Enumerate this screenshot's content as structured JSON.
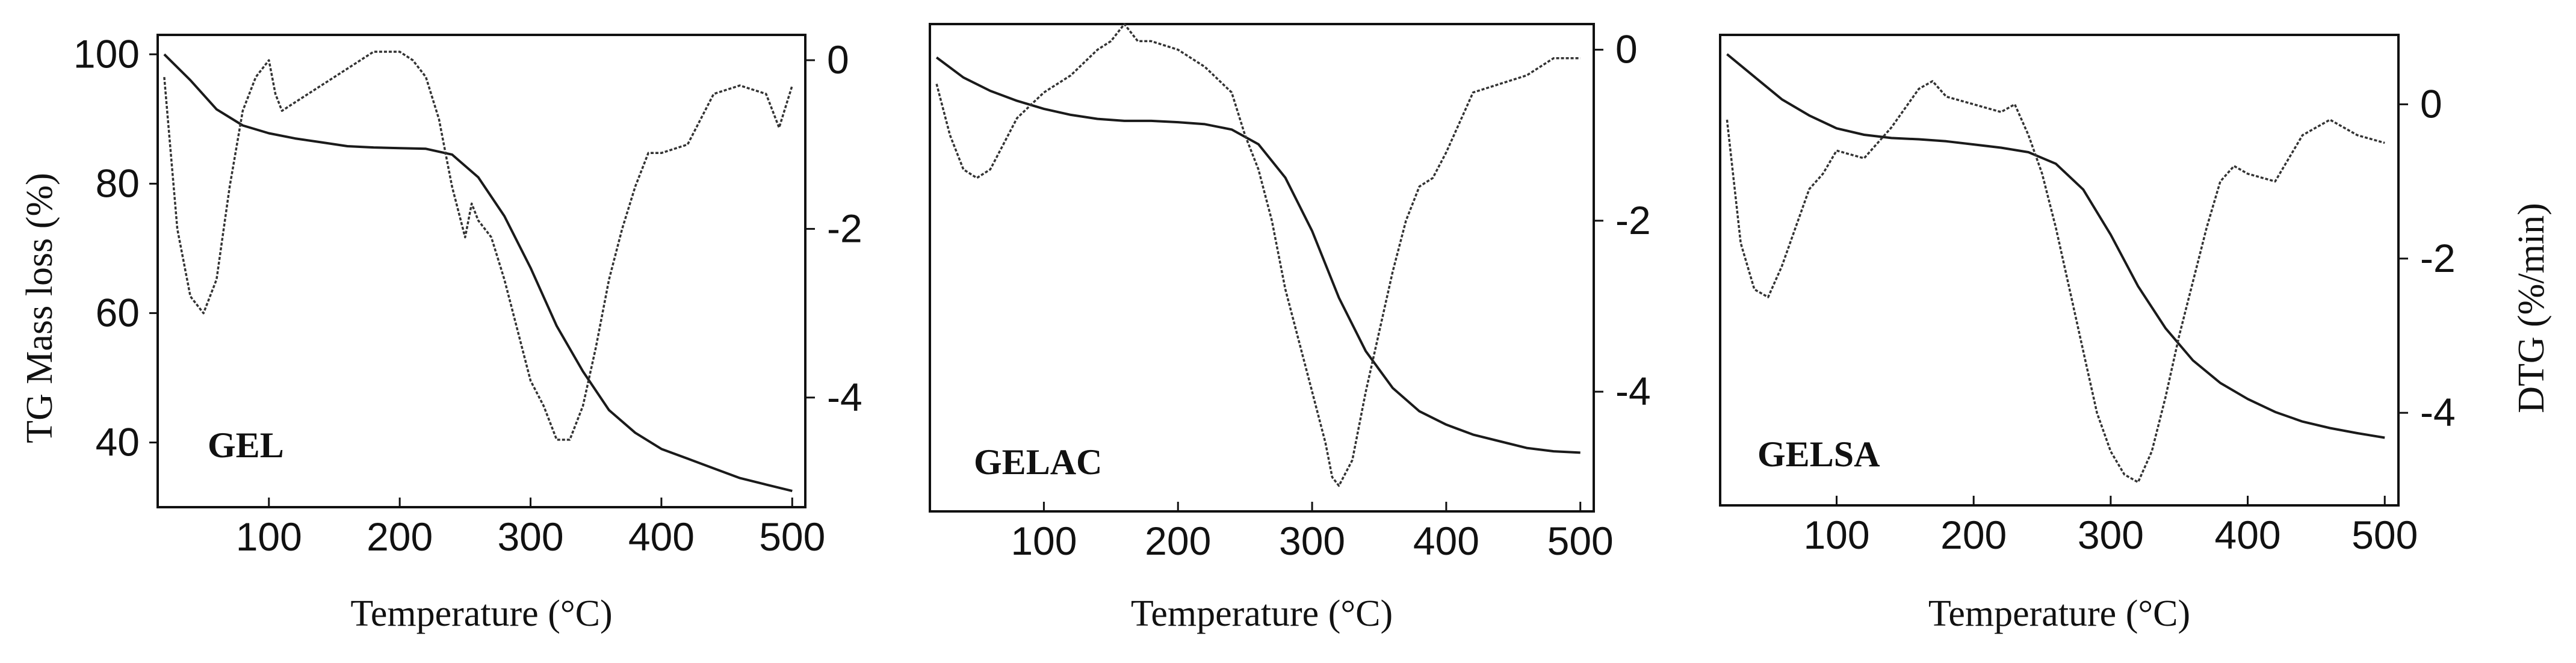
{
  "chart_data": [
    {
      "type": "line",
      "panel_label": "GEL",
      "xlabel": "Temperature (°C)",
      "ylabel_left": "TG Mass loss (%)",
      "ylabel_right": "",
      "xlim": [
        15,
        510
      ],
      "ylim_left": [
        30,
        103
      ],
      "ylim_right": [
        -5.3,
        0.3
      ],
      "xticks": [
        100,
        200,
        300,
        400,
        500
      ],
      "yticks_left": [
        40,
        60,
        80,
        100
      ],
      "yticks_right": [
        0,
        -2,
        -4
      ],
      "series": [
        {
          "name": "TG",
          "axis": "left",
          "style": "solid",
          "x": [
            20,
            40,
            60,
            80,
            100,
            120,
            140,
            160,
            180,
            200,
            220,
            240,
            260,
            280,
            300,
            320,
            340,
            360,
            380,
            400,
            420,
            440,
            460,
            480,
            500
          ],
          "y": [
            100,
            96,
            91.5,
            89,
            87.8,
            87,
            86.4,
            85.8,
            85.6,
            85.5,
            85.4,
            84.5,
            81,
            75,
            67,
            58,
            51,
            45,
            41.5,
            39,
            37.5,
            36,
            34.5,
            33.5,
            32.5
          ]
        },
        {
          "name": "DTG",
          "axis": "right",
          "style": "dotted",
          "x": [
            20,
            30,
            40,
            50,
            60,
            70,
            80,
            90,
            100,
            105,
            110,
            120,
            140,
            160,
            180,
            200,
            210,
            220,
            230,
            235,
            240,
            250,
            255,
            260,
            270,
            280,
            290,
            300,
            310,
            320,
            330,
            340,
            350,
            360,
            370,
            380,
            390,
            400,
            420,
            440,
            460,
            480,
            490,
            500
          ],
          "y": [
            -0.2,
            -2.0,
            -2.8,
            -3.0,
            -2.6,
            -1.5,
            -0.6,
            -0.2,
            0.0,
            -0.4,
            -0.6,
            -0.5,
            -0.3,
            -0.1,
            0.1,
            0.1,
            0.0,
            -0.2,
            -0.7,
            -1.1,
            -1.5,
            -2.1,
            -1.7,
            -1.9,
            -2.1,
            -2.6,
            -3.2,
            -3.8,
            -4.1,
            -4.5,
            -4.5,
            -4.1,
            -3.4,
            -2.6,
            -2.0,
            -1.5,
            -1.1,
            -1.1,
            -1.0,
            -0.4,
            -0.3,
            -0.4,
            -0.8,
            -0.3
          ]
        }
      ]
    },
    {
      "type": "line",
      "panel_label": "GELAC",
      "xlabel": "Temperature (°C)",
      "ylabel_left": "",
      "ylabel_right": "",
      "xlim": [
        15,
        510
      ],
      "ylim_left": [
        30,
        103
      ],
      "ylim_right": [
        -5.4,
        0.3
      ],
      "xticks": [
        100,
        200,
        300,
        400,
        500
      ],
      "yticks_left": [],
      "yticks_right": [
        0,
        -2,
        -4
      ],
      "series": [
        {
          "name": "TG",
          "axis": "left",
          "style": "solid",
          "x": [
            20,
            40,
            60,
            80,
            100,
            120,
            140,
            160,
            180,
            200,
            220,
            240,
            260,
            280,
            300,
            320,
            340,
            360,
            380,
            400,
            420,
            440,
            460,
            480,
            500
          ],
          "y": [
            98,
            95,
            93,
            91.5,
            90.3,
            89.4,
            88.8,
            88.5,
            88.5,
            88.3,
            88,
            87.2,
            85,
            80,
            72,
            62,
            54,
            48.5,
            45,
            43,
            41.5,
            40.5,
            39.5,
            39,
            38.8
          ]
        },
        {
          "name": "DTG",
          "axis": "right",
          "style": "dotted",
          "x": [
            20,
            30,
            40,
            50,
            60,
            70,
            80,
            100,
            120,
            140,
            150,
            160,
            170,
            180,
            200,
            220,
            240,
            250,
            260,
            270,
            280,
            290,
            300,
            310,
            315,
            320,
            330,
            340,
            350,
            360,
            370,
            380,
            390,
            400,
            420,
            440,
            460,
            480,
            500
          ],
          "y": [
            -0.4,
            -1.0,
            -1.4,
            -1.5,
            -1.4,
            -1.1,
            -0.8,
            -0.5,
            -0.3,
            0.0,
            0.1,
            0.3,
            0.1,
            0.1,
            0.0,
            -0.2,
            -0.5,
            -1.0,
            -1.4,
            -2.0,
            -2.8,
            -3.4,
            -4.0,
            -4.6,
            -5.0,
            -5.1,
            -4.8,
            -4.0,
            -3.3,
            -2.6,
            -2.0,
            -1.6,
            -1.5,
            -1.2,
            -0.5,
            -0.4,
            -0.3,
            -0.1,
            -0.1
          ]
        }
      ]
    },
    {
      "type": "line",
      "panel_label": "GELSA",
      "xlabel": "Temperature (°C)",
      "ylabel_left": "",
      "ylabel_right": "DTG (%/min)",
      "xlim": [
        15,
        510
      ],
      "ylim_left": [
        30,
        103
      ],
      "ylim_right": [
        -5.2,
        0.9
      ],
      "xticks": [
        100,
        200,
        300,
        400,
        500
      ],
      "yticks_left": [],
      "yticks_right": [
        0,
        -2,
        -4
      ],
      "series": [
        {
          "name": "TG",
          "axis": "left",
          "style": "solid",
          "x": [
            20,
            40,
            60,
            80,
            100,
            120,
            140,
            160,
            180,
            200,
            220,
            240,
            260,
            280,
            300,
            320,
            340,
            360,
            380,
            400,
            420,
            440,
            460,
            480,
            500
          ],
          "y": [
            100,
            96.5,
            93,
            90.5,
            88.5,
            87.5,
            87,
            86.8,
            86.5,
            86,
            85.5,
            84.8,
            83,
            79,
            72,
            64,
            57.5,
            52.5,
            49,
            46.5,
            44.5,
            43,
            42,
            41.2,
            40.5
          ]
        },
        {
          "name": "DTG",
          "axis": "right",
          "style": "dotted",
          "x": [
            20,
            30,
            40,
            50,
            60,
            70,
            80,
            90,
            100,
            120,
            140,
            160,
            170,
            180,
            200,
            220,
            230,
            240,
            250,
            260,
            270,
            280,
            290,
            300,
            310,
            320,
            330,
            340,
            350,
            360,
            370,
            380,
            390,
            400,
            420,
            440,
            460,
            480,
            500
          ],
          "y": [
            -0.2,
            -1.8,
            -2.4,
            -2.5,
            -2.1,
            -1.6,
            -1.1,
            -0.9,
            -0.6,
            -0.7,
            -0.3,
            0.2,
            0.3,
            0.1,
            0.0,
            -0.1,
            0.0,
            -0.4,
            -0.9,
            -1.6,
            -2.4,
            -3.2,
            -4.0,
            -4.5,
            -4.8,
            -4.9,
            -4.5,
            -3.8,
            -3.0,
            -2.3,
            -1.6,
            -1.0,
            -0.8,
            -0.9,
            -1.0,
            -0.4,
            -0.2,
            -0.4,
            -0.5
          ]
        }
      ]
    }
  ]
}
